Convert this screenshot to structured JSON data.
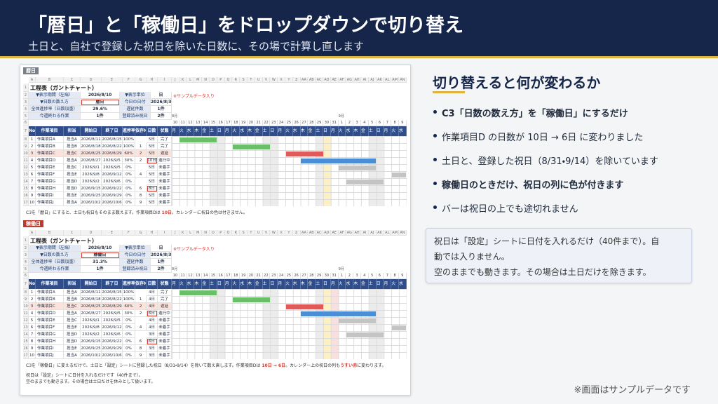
{
  "header": {
    "title": "「暦日」と「稼働日」をドロップダウンで切り替え",
    "subtitle": "土日と、自社で登録した祝日を除いた日数に、その場で計算し直します"
  },
  "column_letters": [
    "A",
    "B",
    "C",
    "D",
    "E",
    "F",
    "G",
    "H",
    "I",
    "J",
    "K",
    "L",
    "M",
    "N",
    "O",
    "P",
    "Q",
    "R",
    "S",
    "T",
    "U",
    "V",
    "W",
    "X",
    "Y",
    "Z",
    "AA",
    "AB",
    "AC",
    "AD",
    "AE",
    "AF",
    "AG",
    "AH",
    "AI",
    "AJ",
    "AK",
    "AL",
    "AM",
    "AN"
  ],
  "row_numbers": [
    1,
    2,
    3,
    4,
    5,
    6,
    7,
    8,
    9,
    10,
    11,
    12,
    13,
    14,
    15,
    16,
    17
  ],
  "columns": [
    "No",
    "作業項目",
    "担当",
    "開始日",
    "終了日",
    "進捗率",
    "依存No",
    "日数",
    "状態"
  ],
  "status_colors": {
    "完了": "#6abf69",
    "遅延": "#e05a5a",
    "進行中": "#4a8fd6",
    "未着手": "#c4c4c4"
  },
  "calendar": {
    "days": [
      {
        "day": 10,
        "weekday": "月",
        "month": "8月"
      },
      {
        "day": 11,
        "weekday": "火"
      },
      {
        "day": 12,
        "weekday": "水"
      },
      {
        "day": 13,
        "weekday": "木"
      },
      {
        "day": 14,
        "weekday": "金"
      },
      {
        "day": 15,
        "weekday": "土"
      },
      {
        "day": 16,
        "weekday": "日"
      },
      {
        "day": 17,
        "weekday": "月"
      },
      {
        "day": 18,
        "weekday": "火"
      },
      {
        "day": 19,
        "weekday": "水"
      },
      {
        "day": 20,
        "weekday": "木"
      },
      {
        "day": 21,
        "weekday": "金"
      },
      {
        "day": 22,
        "weekday": "土"
      },
      {
        "day": 23,
        "weekday": "日"
      },
      {
        "day": 24,
        "weekday": "月"
      },
      {
        "day": 25,
        "weekday": "火"
      },
      {
        "day": 26,
        "weekday": "水"
      },
      {
        "day": 27,
        "weekday": "木"
      },
      {
        "day": 28,
        "weekday": "金"
      },
      {
        "day": 29,
        "weekday": "土"
      },
      {
        "day": 30,
        "weekday": "日"
      },
      {
        "day": 31,
        "weekday": "月",
        "holiday": true
      },
      {
        "day": 1,
        "weekday": "火",
        "month": "9月"
      },
      {
        "day": 2,
        "weekday": "水"
      },
      {
        "day": 3,
        "weekday": "木"
      },
      {
        "day": 4,
        "weekday": "金"
      },
      {
        "day": 5,
        "weekday": "土"
      },
      {
        "day": 6,
        "weekday": "日"
      },
      {
        "day": 7,
        "weekday": "月"
      },
      {
        "day": 8,
        "weekday": "火"
      },
      {
        "day": 9,
        "weekday": "水"
      }
    ]
  },
  "sheets": [
    {
      "tag": "暦日",
      "tag_color": "#7a7f88",
      "title": "工程表（ガントチャート）",
      "sample_note": "※サンプルデータ入り",
      "holiday_tint": false,
      "info": [
        {
          "label": "▼表示期間（左端）",
          "value": "2026/8/10",
          "label2": "▼表示単位",
          "value2": "日"
        },
        {
          "label": "▼日数の数え方",
          "value": "暦日",
          "label2": "今日の日付",
          "value2": "2026/8/30"
        },
        {
          "label": "全体進捗率（日数加重）",
          "value": "29.6%",
          "label2": "遅延件数",
          "value2": "1件"
        },
        {
          "label": "今週終わる作業",
          "value": "1件",
          "label2": "登録済み祝日",
          "value2": "2件"
        }
      ],
      "tasks": [
        {
          "no": 1,
          "item": "作業項目A",
          "owner": "担当A",
          "start": "2026/8/11",
          "end": "2026/8/15",
          "progress": "100%",
          "dep": null,
          "days": "5日",
          "status": "完了"
        },
        {
          "no": 2,
          "item": "作業項目B",
          "owner": "担当B",
          "start": "2026/8/18",
          "end": "2026/8/22",
          "progress": "100%",
          "dep": 1,
          "days": "5日",
          "status": "完了"
        },
        {
          "no": 3,
          "item": "作業項目C",
          "owner": "担当C",
          "start": "2026/8/25",
          "end": "2026/8/29",
          "progress": "60%",
          "dep": 2,
          "days": "5日",
          "status": "遅延"
        },
        {
          "no": 4,
          "item": "作業項目D",
          "owner": "担当A",
          "start": "2026/8/27",
          "end": "2026/9/5",
          "progress": "30%",
          "dep": 2,
          "days": "10日",
          "status": "進行中"
        },
        {
          "no": 5,
          "item": "作業項目E",
          "owner": "担当C",
          "start": "2026/9/1",
          "end": "2026/9/5",
          "progress": "0%",
          "dep": null,
          "days": "5日",
          "status": "未着手"
        },
        {
          "no": 6,
          "item": "作業項目F",
          "owner": "担当E",
          "start": "2026/9/8",
          "end": "2026/9/12",
          "progress": "0%",
          "dep": 4,
          "days": "5日",
          "status": "未着手"
        },
        {
          "no": 7,
          "item": "作業項目G",
          "owner": "担当D",
          "start": "2026/9/2",
          "end": "2026/9/6",
          "progress": "0%",
          "dep": null,
          "days": "5日",
          "status": "未着手"
        },
        {
          "no": 8,
          "item": "作業項目H",
          "owner": "担当D",
          "start": "2026/9/15",
          "end": "2026/9/22",
          "progress": "0%",
          "dep": 6,
          "days": "8日",
          "status": "未着手"
        },
        {
          "no": 9,
          "item": "作業項目I",
          "owner": "担当E",
          "start": "2026/9/25",
          "end": "2026/9/29",
          "progress": "0%",
          "dep": 8,
          "days": "5日",
          "status": "未着手"
        },
        {
          "no": 10,
          "item": "作業項目J",
          "owner": "担当A",
          "start": "2026/10/2",
          "end": "2026/10/6",
          "progress": "0%",
          "dep": 9,
          "days": "5日",
          "status": "未着手"
        }
      ],
      "caption": [
        {
          "text": "C3を「暦日」にすると、土日も祝日もそのまま数えます。作業項目Dは "
        },
        {
          "text": "10日",
          "strong": true
        },
        {
          "text": "。カレンダーに祝日の色は付きません。"
        }
      ]
    },
    {
      "tag": "稼働日",
      "tag_color": "#c0392b",
      "title": "工程表（ガントチャート）",
      "sample_note": "※サンプルデータ入り",
      "holiday_tint": true,
      "info": [
        {
          "label": "▼表示期間（左端）",
          "value": "2026/8/10",
          "label2": "▼表示単位",
          "value2": "日"
        },
        {
          "label": "▼日数の数え方",
          "value": "稼働日",
          "label2": "今日の日付",
          "value2": "2026/8/30"
        },
        {
          "label": "全体進捗率（日数加重）",
          "value": "31.3%",
          "label2": "遅延件数",
          "value2": "1件"
        },
        {
          "label": "今週終わる作業",
          "value": "1件",
          "label2": "登録済み祝日",
          "value2": "2件"
        }
      ],
      "tasks": [
        {
          "no": 1,
          "item": "作業項目A",
          "owner": "担当A",
          "start": "2026/8/11",
          "end": "2026/8/15",
          "progress": "100%",
          "dep": null,
          "days": "4日",
          "status": "完了"
        },
        {
          "no": 2,
          "item": "作業項目B",
          "owner": "担当B",
          "start": "2026/8/18",
          "end": "2026/8/22",
          "progress": "100%",
          "dep": 1,
          "days": "4日",
          "status": "完了"
        },
        {
          "no": 3,
          "item": "作業項目C",
          "owner": "担当C",
          "start": "2026/8/25",
          "end": "2026/8/29",
          "progress": "60%",
          "dep": 2,
          "days": "4日",
          "status": "遅延"
        },
        {
          "no": 4,
          "item": "作業項目D",
          "owner": "担当A",
          "start": "2026/8/27",
          "end": "2026/9/5",
          "progress": "30%",
          "dep": 2,
          "days": "6日",
          "status": "進行中"
        },
        {
          "no": 5,
          "item": "作業項目E",
          "owner": "担当C",
          "start": "2026/9/1",
          "end": "2026/9/5",
          "progress": "0%",
          "dep": null,
          "days": "4日",
          "status": "未着手"
        },
        {
          "no": 6,
          "item": "作業項目F",
          "owner": "担当E",
          "start": "2026/9/8",
          "end": "2026/9/12",
          "progress": "0%",
          "dep": 4,
          "days": "4日",
          "status": "未着手"
        },
        {
          "no": 7,
          "item": "作業項目G",
          "owner": "担当D",
          "start": "2026/9/2",
          "end": "2026/9/6",
          "progress": "0%",
          "dep": null,
          "days": "3日",
          "status": "未着手"
        },
        {
          "no": 8,
          "item": "作業項目H",
          "owner": "担当D",
          "start": "2026/9/15",
          "end": "2026/9/22",
          "progress": "0%",
          "dep": 6,
          "days": "6日",
          "status": "未着手"
        },
        {
          "no": 9,
          "item": "作業項目I",
          "owner": "担当E",
          "start": "2026/9/25",
          "end": "2026/9/29",
          "progress": "0%",
          "dep": 8,
          "days": "3日",
          "status": "未着手"
        },
        {
          "no": 10,
          "item": "作業項目J",
          "owner": "担当A",
          "start": "2026/10/2",
          "end": "2026/10/6",
          "progress": "0%",
          "dep": 9,
          "days": "3日",
          "status": "未着手"
        }
      ],
      "caption": [
        {
          "text": "C3を「稼働日」に変えるだけで、土日と「設定」シートに登録した祝日（8/31・9/14）を除いて数え直します。作業項目Dは "
        },
        {
          "text": "10日 → 6日",
          "strong": true
        },
        {
          "text": "。カレンダー上の祝日の列も"
        },
        {
          "text": "うすい赤",
          "strong": true
        },
        {
          "text": "に変わります。"
        }
      ],
      "notes": [
        "祝日は「設定」シートに日付を入れるだけです（40件まで）。",
        "空のままでも動きます。その場合は土日だけを休みとして扱います。"
      ]
    }
  ],
  "panel": {
    "heading": "切り替えると何が変わるか",
    "bullets": [
      {
        "text": "C3「日数の数え方」を「稼働日」にするだけ",
        "bold": true
      },
      {
        "text": "作業項目D の日数が 10日 → 6日 に変わりました",
        "bold": false
      },
      {
        "text": "土日と、登録した祝日（8/31・9/14）を除いています",
        "bold": false
      },
      {
        "text": "稼働日のときだけ、祝日の列に色が付きます",
        "bold": true
      },
      {
        "text": "バーは祝日の上でも途切れません",
        "bold": false
      }
    ],
    "box": [
      "祝日は「設定」シートに日付を入れるだけ（40件まで）。自",
      "動では入りません。",
      "空のままでも動きます。その場合は土日だけを除きます。"
    ]
  },
  "footer": "※画面はサンプルデータです"
}
